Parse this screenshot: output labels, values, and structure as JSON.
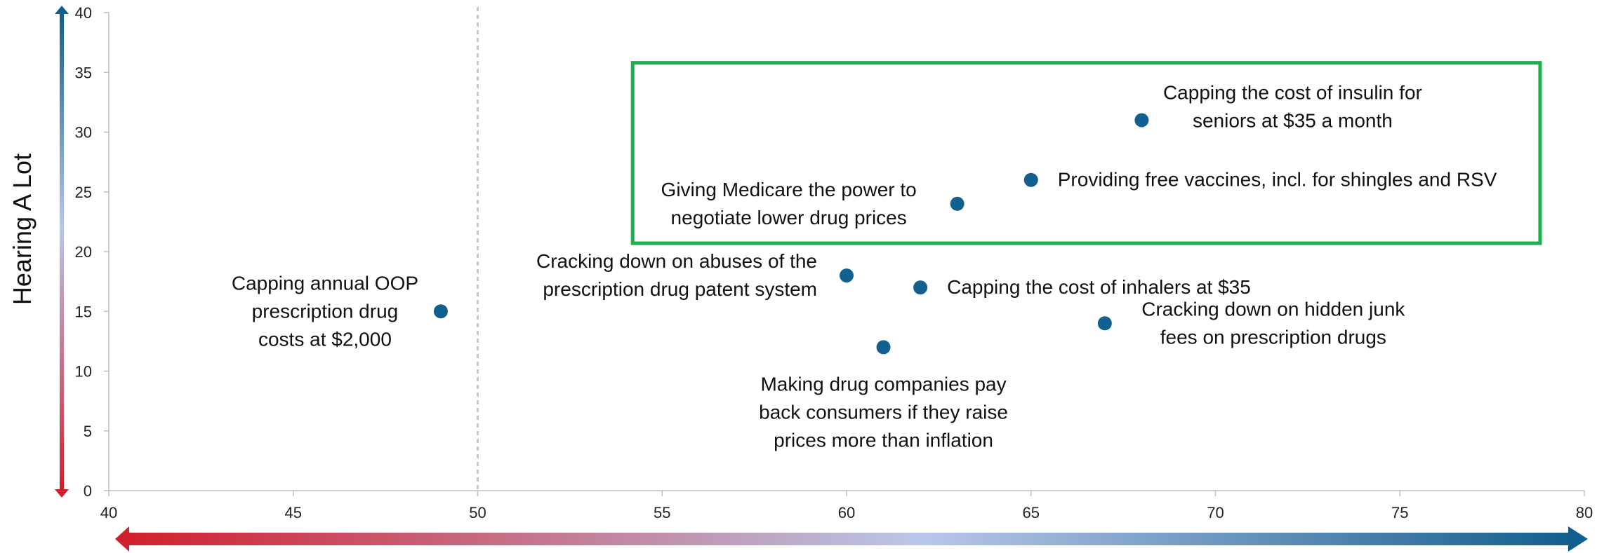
{
  "chart_data": {
    "type": "scatter",
    "title": "",
    "xlabel": "",
    "ylabel": "Hearing A Lot",
    "xlim": [
      40,
      80
    ],
    "ylim": [
      0,
      40
    ],
    "x_ticks": [
      "40",
      "45",
      "50",
      "55",
      "60",
      "65",
      "70",
      "75",
      "80"
    ],
    "y_ticks": [
      "0",
      "5",
      "10",
      "15",
      "20",
      "25",
      "30",
      "35",
      "40"
    ],
    "reference_line_x": 50,
    "grid": false,
    "gradient_colors": {
      "low": "#d0202e",
      "mid": "#b9c7ea",
      "high": "#135f8c"
    },
    "point_color": "#11608d",
    "highlight_box_color": "#19b14b",
    "points": [
      {
        "x": 49,
        "y": 15,
        "label": [
          "Capping annual OOP",
          "prescription drug",
          "costs at $2,000"
        ],
        "label_pos": "left"
      },
      {
        "x": 60,
        "y": 18,
        "label": [
          "Cracking down on abuses of the",
          "prescription drug patent system"
        ],
        "label_pos": "left"
      },
      {
        "x": 61,
        "y": 12,
        "label": [
          "Making drug companies pay",
          "back consumers if they raise",
          "prices more than inflation"
        ],
        "label_pos": "below"
      },
      {
        "x": 62,
        "y": 17,
        "label": [
          "Capping the cost of inhalers at $35"
        ],
        "label_pos": "right"
      },
      {
        "x": 63,
        "y": 24,
        "label": [
          "Giving Medicare the power to",
          "negotiate lower drug prices"
        ],
        "label_pos": "left"
      },
      {
        "x": 65,
        "y": 26,
        "label": [
          "Providing free vaccines, incl. for shingles and RSV"
        ],
        "label_pos": "right"
      },
      {
        "x": 67,
        "y": 14,
        "label": [
          "Cracking down on hidden junk",
          "fees on prescription drugs"
        ],
        "label_pos": "right"
      },
      {
        "x": 68,
        "y": 31,
        "label": [
          "Capping the cost of insulin for",
          "seniors at $35 a month"
        ],
        "label_pos": "above"
      }
    ],
    "highlight_box": {
      "x_range": [
        54.2,
        78.8
      ],
      "y_range": [
        20.7,
        35.8
      ]
    }
  }
}
